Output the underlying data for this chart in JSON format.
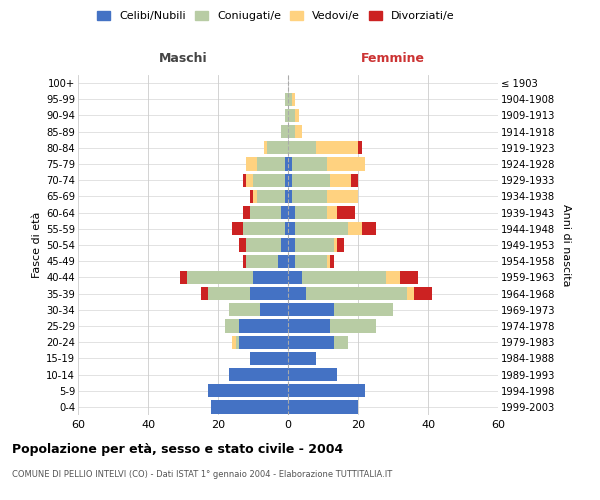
{
  "age_groups": [
    "0-4",
    "5-9",
    "10-14",
    "15-19",
    "20-24",
    "25-29",
    "30-34",
    "35-39",
    "40-44",
    "45-49",
    "50-54",
    "55-59",
    "60-64",
    "65-69",
    "70-74",
    "75-79",
    "80-84",
    "85-89",
    "90-94",
    "95-99",
    "100+"
  ],
  "birth_years": [
    "1999-2003",
    "1994-1998",
    "1989-1993",
    "1984-1988",
    "1979-1983",
    "1974-1978",
    "1969-1973",
    "1964-1968",
    "1959-1963",
    "1954-1958",
    "1949-1953",
    "1944-1948",
    "1939-1943",
    "1934-1938",
    "1929-1933",
    "1924-1928",
    "1919-1923",
    "1914-1918",
    "1909-1913",
    "1904-1908",
    "≤ 1903"
  ],
  "maschi": {
    "celibi": [
      22,
      23,
      17,
      11,
      14,
      14,
      8,
      11,
      10,
      3,
      2,
      1,
      2,
      1,
      1,
      1,
      0,
      0,
      0,
      0,
      0
    ],
    "coniugati": [
      0,
      0,
      0,
      0,
      1,
      4,
      9,
      12,
      19,
      9,
      10,
      12,
      9,
      8,
      9,
      8,
      6,
      2,
      1,
      1,
      0
    ],
    "vedovi": [
      0,
      0,
      0,
      0,
      1,
      0,
      0,
      0,
      0,
      0,
      0,
      0,
      0,
      1,
      2,
      3,
      1,
      0,
      0,
      0,
      0
    ],
    "divorziati": [
      0,
      0,
      0,
      0,
      0,
      0,
      0,
      2,
      2,
      1,
      2,
      3,
      2,
      1,
      1,
      0,
      0,
      0,
      0,
      0,
      0
    ]
  },
  "femmine": {
    "nubili": [
      20,
      22,
      14,
      8,
      13,
      12,
      13,
      5,
      4,
      2,
      2,
      2,
      2,
      1,
      1,
      1,
      0,
      0,
      0,
      0,
      0
    ],
    "coniugate": [
      0,
      0,
      0,
      0,
      4,
      13,
      17,
      29,
      24,
      9,
      11,
      15,
      9,
      10,
      11,
      10,
      8,
      2,
      2,
      1,
      0
    ],
    "vedove": [
      0,
      0,
      0,
      0,
      0,
      0,
      0,
      2,
      4,
      1,
      1,
      4,
      3,
      9,
      6,
      11,
      12,
      2,
      1,
      1,
      0
    ],
    "divorziate": [
      0,
      0,
      0,
      0,
      0,
      0,
      0,
      5,
      5,
      1,
      2,
      4,
      5,
      0,
      2,
      0,
      1,
      0,
      0,
      0,
      0
    ]
  },
  "colors": {
    "celibi": "#4472c4",
    "coniugati": "#b8cca4",
    "vedovi": "#ffd280",
    "divorziati": "#cc2222"
  },
  "xlim": 60,
  "title": "Popolazione per età, sesso e stato civile - 2004",
  "subtitle": "COMUNE DI PELLIO INTELVI (CO) - Dati ISTAT 1° gennaio 2004 - Elaborazione TUTTITALIA.IT",
  "ylabel_left": "Fasce di età",
  "ylabel_right": "Anni di nascita",
  "xlabel_left": "Maschi",
  "xlabel_right": "Femmine",
  "legend_labels": [
    "Celibi/Nubili",
    "Coniugati/e",
    "Vedovi/e",
    "Divorziati/e"
  ]
}
